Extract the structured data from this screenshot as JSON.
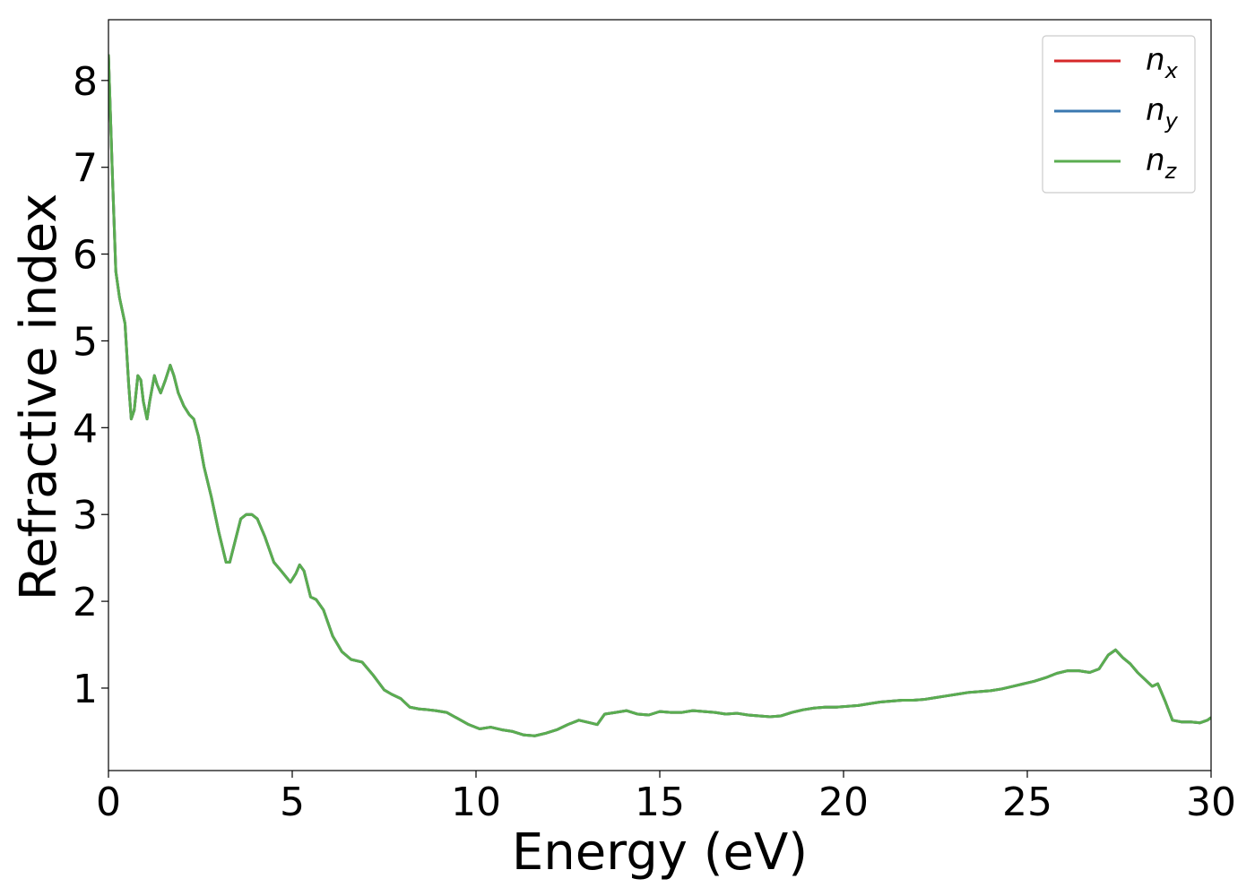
{
  "chart_data": {
    "type": "line",
    "title": "",
    "xlabel": "Energy (eV)",
    "ylabel": "Refractive index",
    "xlim": [
      0,
      30
    ],
    "ylim": [
      0.05,
      8.7
    ],
    "xticks": [
      0,
      5,
      10,
      15,
      20,
      25,
      30
    ],
    "yticks": [
      1,
      2,
      3,
      4,
      5,
      6,
      7,
      8
    ],
    "grid": false,
    "legend_position": "top-right",
    "series": [
      {
        "name": "n_x",
        "label_main": "n",
        "label_sub": "x",
        "color": "#d62728",
        "x": [
          0,
          0.1,
          0.2,
          0.3,
          0.45,
          0.55,
          0.62,
          0.7,
          0.8,
          0.88,
          0.95,
          1.05,
          1.12,
          1.25,
          1.32,
          1.42,
          1.55,
          1.68,
          1.78,
          1.9,
          2.05,
          2.2,
          2.32,
          2.45,
          2.6,
          2.8,
          3.0,
          3.2,
          3.3,
          3.45,
          3.6,
          3.75,
          3.9,
          4.05,
          4.25,
          4.5,
          4.7,
          4.95,
          5.1,
          5.2,
          5.32,
          5.5,
          5.65,
          5.85,
          6.1,
          6.35,
          6.6,
          6.9,
          7.2,
          7.5,
          7.7,
          7.95,
          8.2,
          8.45,
          8.7,
          8.9,
          9.2,
          9.5,
          9.8,
          10.1,
          10.4,
          10.7,
          11.0,
          11.3,
          11.6,
          11.9,
          12.2,
          12.5,
          12.8,
          13.1,
          13.3,
          13.5,
          13.8,
          14.1,
          14.4,
          14.7,
          15.0,
          15.3,
          15.6,
          15.9,
          16.2,
          16.5,
          16.8,
          17.1,
          17.4,
          17.7,
          18.0,
          18.3,
          18.6,
          18.9,
          19.2,
          19.5,
          19.8,
          20.1,
          20.4,
          20.7,
          21.0,
          21.3,
          21.6,
          21.9,
          22.2,
          22.5,
          22.8,
          23.1,
          23.4,
          23.7,
          24.0,
          24.3,
          24.6,
          24.9,
          25.2,
          25.5,
          25.8,
          26.1,
          26.4,
          26.7,
          26.95,
          27.2,
          27.4,
          27.6,
          27.8,
          28.0,
          28.2,
          28.4,
          28.55,
          28.75,
          28.95,
          29.2,
          29.45,
          29.7,
          29.9,
          30.0
        ],
        "y": [
          8.3,
          7.0,
          5.8,
          5.5,
          5.2,
          4.5,
          4.1,
          4.2,
          4.6,
          4.55,
          4.3,
          4.1,
          4.3,
          4.6,
          4.5,
          4.4,
          4.55,
          4.72,
          4.6,
          4.4,
          4.25,
          4.15,
          4.1,
          3.9,
          3.55,
          3.2,
          2.8,
          2.45,
          2.45,
          2.7,
          2.95,
          3.0,
          3.0,
          2.95,
          2.75,
          2.45,
          2.35,
          2.22,
          2.32,
          2.42,
          2.35,
          2.05,
          2.02,
          1.9,
          1.6,
          1.42,
          1.33,
          1.3,
          1.15,
          0.98,
          0.93,
          0.88,
          0.78,
          0.76,
          0.75,
          0.74,
          0.72,
          0.65,
          0.58,
          0.53,
          0.55,
          0.52,
          0.5,
          0.46,
          0.45,
          0.48,
          0.52,
          0.58,
          0.63,
          0.6,
          0.58,
          0.7,
          0.72,
          0.74,
          0.7,
          0.69,
          0.73,
          0.72,
          0.72,
          0.74,
          0.73,
          0.72,
          0.7,
          0.71,
          0.69,
          0.68,
          0.67,
          0.68,
          0.72,
          0.75,
          0.77,
          0.78,
          0.78,
          0.79,
          0.8,
          0.82,
          0.84,
          0.85,
          0.86,
          0.86,
          0.87,
          0.89,
          0.91,
          0.93,
          0.95,
          0.96,
          0.97,
          0.99,
          1.02,
          1.05,
          1.08,
          1.12,
          1.17,
          1.2,
          1.2,
          1.18,
          1.22,
          1.38,
          1.44,
          1.35,
          1.28,
          1.18,
          1.1,
          1.02,
          1.05,
          0.85,
          0.63,
          0.61,
          0.61,
          0.6,
          0.63,
          0.66
        ]
      },
      {
        "name": "n_y",
        "label_main": "n",
        "label_sub": "y",
        "color": "#3a78b0",
        "same_as": "n_x"
      },
      {
        "name": "n_z",
        "label_main": "n",
        "label_sub": "z",
        "color": "#5aad50",
        "same_as": "n_x"
      }
    ]
  }
}
